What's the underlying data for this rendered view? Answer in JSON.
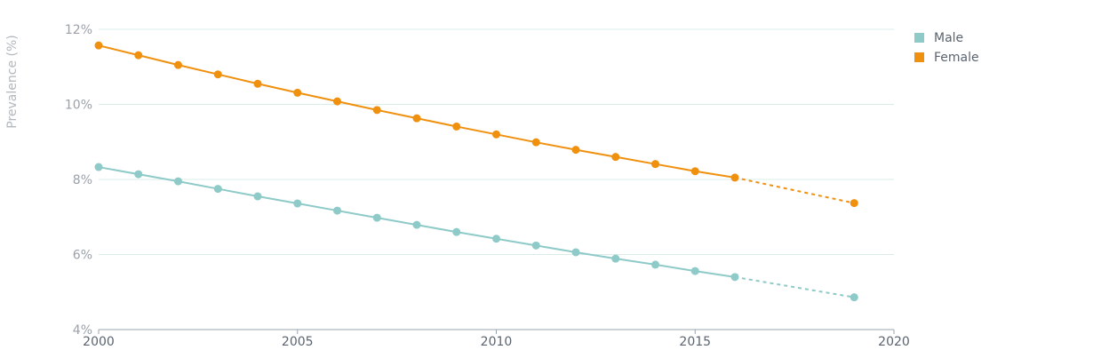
{
  "chart_data": {
    "type": "line",
    "title": "",
    "xlabel": "",
    "ylabel": "Prevalence (%)",
    "xlim": [
      2000,
      2020
    ],
    "ylim": [
      4,
      12
    ],
    "xticks": [
      "2000",
      "2005",
      "2010",
      "2015",
      "2020"
    ],
    "yticks": [
      "4%",
      "6%",
      "8%",
      "10%",
      "12%"
    ],
    "grid": true,
    "legend": "top-right",
    "series": [
      {
        "name": "Male",
        "color": "#8ecac8",
        "x": [
          2000,
          2001,
          2002,
          2003,
          2004,
          2005,
          2006,
          2007,
          2008,
          2009,
          2010,
          2011,
          2012,
          2013,
          2014,
          2015,
          2016,
          2019
        ],
        "values": [
          8.33,
          8.14,
          7.95,
          7.75,
          7.55,
          7.36,
          7.17,
          6.98,
          6.79,
          6.6,
          6.42,
          6.24,
          6.06,
          5.89,
          5.73,
          5.56,
          5.4,
          4.86
        ],
        "projected_from": 2016
      },
      {
        "name": "Female",
        "color": "#f0900f",
        "x": [
          2000,
          2001,
          2002,
          2003,
          2004,
          2005,
          2006,
          2007,
          2008,
          2009,
          2010,
          2011,
          2012,
          2013,
          2014,
          2015,
          2016,
          2019
        ],
        "values": [
          11.57,
          11.31,
          11.05,
          10.8,
          10.55,
          10.31,
          10.08,
          9.85,
          9.63,
          9.41,
          9.2,
          8.99,
          8.79,
          8.6,
          8.41,
          8.22,
          8.05,
          7.37
        ],
        "projected_from": 2016
      }
    ]
  }
}
